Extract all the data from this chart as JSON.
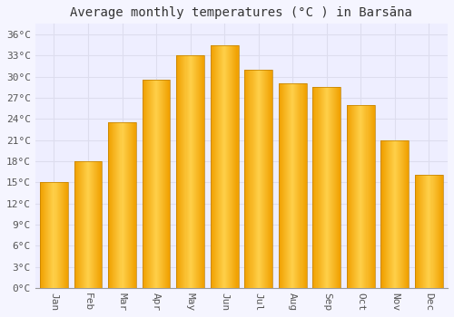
{
  "title": "Average monthly temperatures (°C ) in Barsāna",
  "months": [
    "Jan",
    "Feb",
    "Mar",
    "Apr",
    "May",
    "Jun",
    "Jul",
    "Aug",
    "Sep",
    "Oct",
    "Nov",
    "Dec"
  ],
  "values": [
    15.0,
    18.0,
    23.5,
    29.5,
    33.0,
    34.5,
    31.0,
    29.0,
    28.5,
    26.0,
    21.0,
    16.0
  ],
  "bar_color_center": "#FFD04A",
  "bar_color_edge": "#F0A000",
  "background_color": "#F5F5FF",
  "plot_bg_color": "#EEEEFF",
  "grid_color": "#DDDDEE",
  "ylabel_ticks": [
    0,
    3,
    6,
    9,
    12,
    15,
    18,
    21,
    24,
    27,
    30,
    33,
    36
  ],
  "ylim": [
    0,
    37.5
  ],
  "title_fontsize": 10,
  "tick_fontsize": 8,
  "font_family": "monospace"
}
